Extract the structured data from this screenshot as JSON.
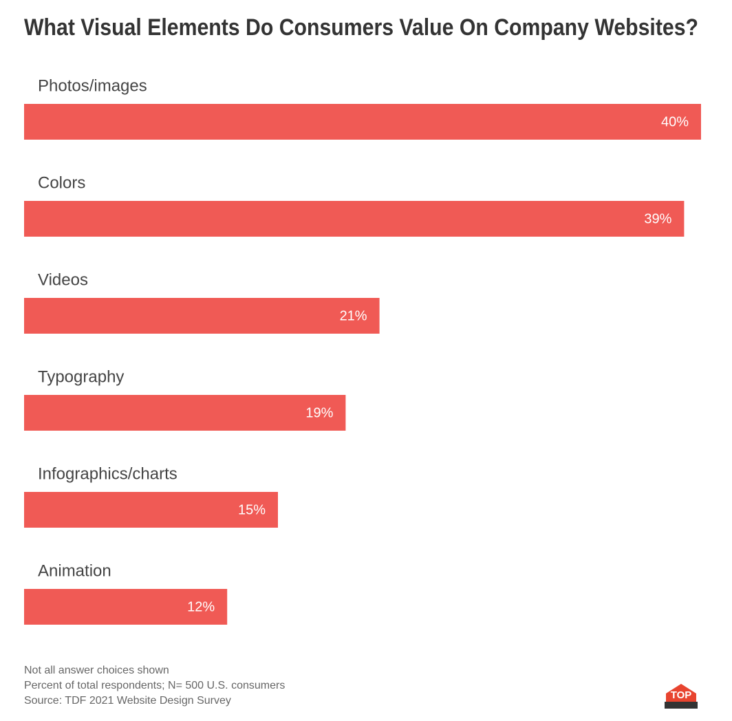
{
  "chart_data": {
    "type": "bar",
    "orientation": "horizontal",
    "title": "What Visual Elements Do Consumers Value On Company Websites?",
    "categories": [
      "Photos/images",
      "Colors",
      "Videos",
      "Typography",
      "Infographics/charts",
      "Animation"
    ],
    "values": [
      40,
      39,
      21,
      19,
      15,
      12
    ],
    "value_labels": [
      "40%",
      "39%",
      "21%",
      "19%",
      "15%",
      "12%"
    ],
    "color": "#f05a55",
    "notes": [
      "Not all answer choices shown",
      "Percent of total respondents; N= 500 U.S. consumers",
      "Source: TDF 2021 Website Design Survey"
    ]
  },
  "logo": {
    "text": "TOP"
  }
}
